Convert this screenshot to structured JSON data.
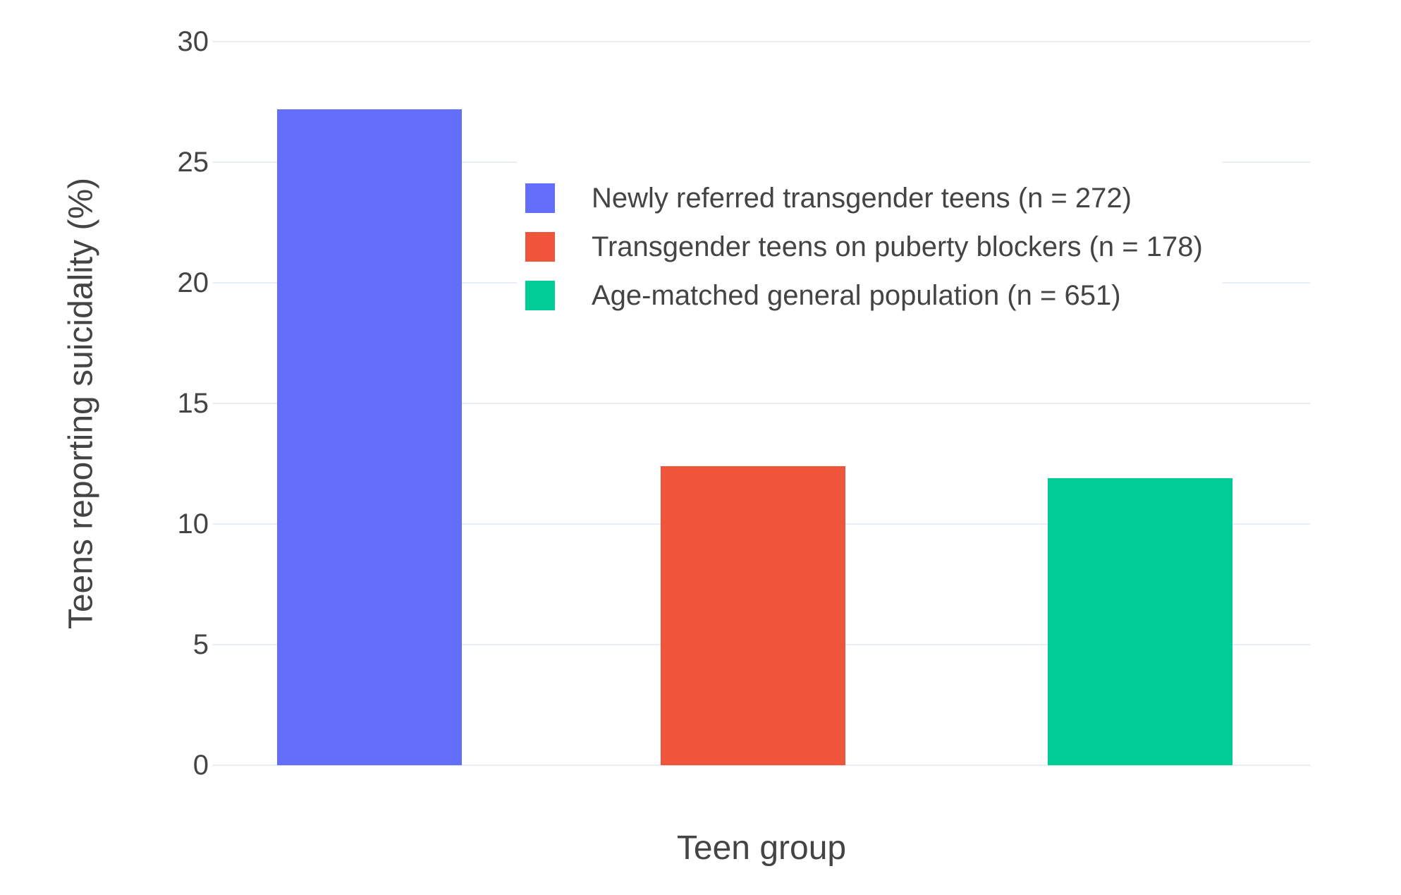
{
  "figure": {
    "background_color": "#ffffff",
    "text_color": "#444444",
    "grid_color": "#e8edf6"
  },
  "chart_data": {
    "type": "bar",
    "xlabel": "Teen group",
    "ylabel": "Teens reporting suicidality (%)",
    "categories": [
      "Newly referred transgender teens (n = 272)",
      "Transgender teens on puberty blockers (n = 178)",
      "Age-matched general population (n = 651)"
    ],
    "values": [
      27.2,
      12.4,
      11.9
    ],
    "colors": [
      "#636EFA",
      "#EF553B",
      "#00CC96"
    ],
    "ylim": [
      0,
      30
    ],
    "yticks": [
      0,
      5,
      10,
      15,
      20,
      25,
      30
    ],
    "grid": true,
    "legend_position": "inside-top-center",
    "legend": [
      {
        "label": "Newly referred transgender teens (n = 272)",
        "color": "#636EFA"
      },
      {
        "label": "Transgender teens on puberty blockers (n = 178)",
        "color": "#EF553B"
      },
      {
        "label": "Age-matched general population (n = 651)",
        "color": "#00CC96"
      }
    ]
  }
}
